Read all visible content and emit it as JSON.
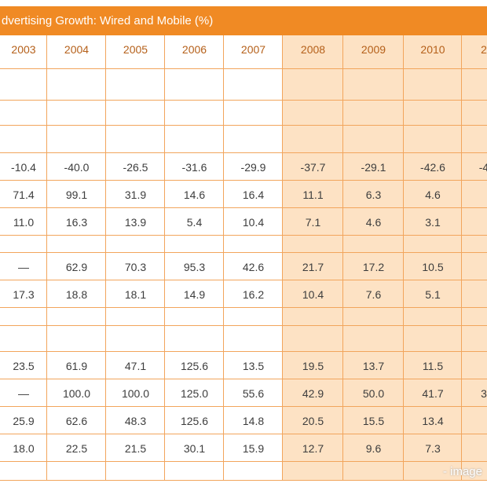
{
  "header": {
    "title": "dvertising Growth: Wired and Mobile (%)"
  },
  "table": {
    "columns": [
      "2003",
      "2004",
      "2005",
      "2006",
      "2007",
      "2008",
      "2009",
      "2010",
      "2"
    ],
    "rows": [
      [
        "-10.4",
        "-40.0",
        "-26.5",
        "-31.6",
        "-29.9",
        "-37.7",
        "-29.1",
        "-42.6",
        "-4"
      ],
      [
        "71.4",
        "99.1",
        "31.9",
        "14.6",
        "16.4",
        "11.1",
        "6.3",
        "4.6",
        null
      ],
      [
        "11.0",
        "16.3",
        "13.9",
        "5.4",
        "10.4",
        "7.1",
        "4.6",
        "3.1",
        null
      ],
      [
        "—",
        "62.9",
        "70.3",
        "95.3",
        "42.6",
        "21.7",
        "17.2",
        "10.5",
        null
      ],
      [
        "17.3",
        "18.8",
        "18.1",
        "14.9",
        "16.2",
        "10.4",
        "7.6",
        "5.1",
        null
      ],
      [
        "23.5",
        "61.9",
        "47.1",
        "125.6",
        "13.5",
        "19.5",
        "13.7",
        "11.5",
        null
      ],
      [
        "—",
        "100.0",
        "100.0",
        "125.0",
        "55.6",
        "42.9",
        "50.0",
        "41.7",
        "3"
      ],
      [
        "25.9",
        "62.6",
        "48.3",
        "125.6",
        "14.8",
        "20.5",
        "15.5",
        "13.4",
        null
      ],
      [
        "18.0",
        "22.5",
        "21.5",
        "30.1",
        "15.9",
        "12.7",
        "9.6",
        "7.3",
        null
      ]
    ]
  },
  "watermark": "- image"
}
